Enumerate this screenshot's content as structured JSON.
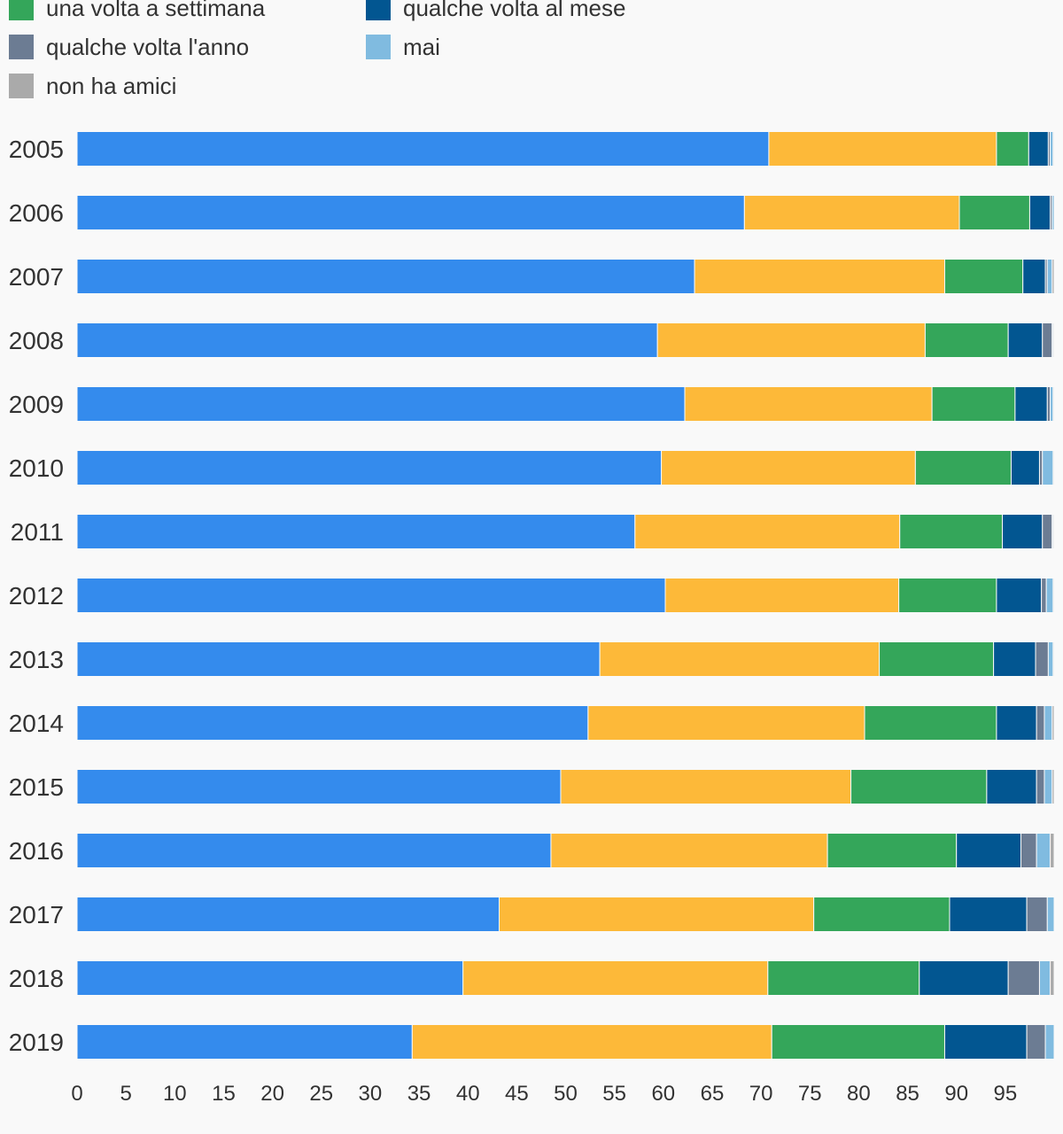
{
  "chart_data": {
    "type": "bar",
    "orientation": "horizontal",
    "stacked": true,
    "categories": [
      "2005",
      "2006",
      "2007",
      "2008",
      "2009",
      "2010",
      "2011",
      "2012",
      "2013",
      "2014",
      "2015",
      "2016",
      "2017",
      "2018",
      "2019"
    ],
    "series": [
      {
        "name": "",
        "color": "#348bed",
        "values": [
          70.8,
          68.3,
          63.2,
          59.4,
          62.2,
          59.8,
          57.1,
          60.2,
          53.5,
          52.3,
          49.5,
          48.5,
          43.2,
          39.5,
          34.3
        ]
      },
      {
        "name": "",
        "color": "#fdb939",
        "values": [
          23.3,
          22.0,
          25.6,
          27.4,
          25.3,
          26.0,
          27.1,
          23.9,
          28.6,
          28.3,
          29.7,
          28.3,
          32.2,
          31.2,
          36.8
        ]
      },
      {
        "name": "una volta a settimana",
        "color": "#34a65a",
        "values": [
          3.3,
          7.2,
          8.0,
          8.5,
          8.5,
          9.8,
          10.5,
          10.0,
          11.7,
          13.5,
          13.9,
          13.2,
          13.9,
          15.5,
          17.7
        ]
      },
      {
        "name": "qualche volta al mese",
        "color": "#025691",
        "values": [
          2.0,
          2.1,
          2.3,
          3.5,
          3.3,
          2.9,
          4.1,
          4.6,
          4.3,
          4.1,
          5.1,
          6.6,
          7.9,
          9.1,
          8.4
        ]
      },
      {
        "name": "qualche volta l'anno",
        "color": "#6c7c93",
        "values": [
          0.2,
          0.2,
          0.2,
          1.0,
          0.3,
          0.3,
          1.0,
          0.5,
          1.3,
          0.8,
          0.8,
          1.6,
          2.1,
          3.2,
          1.9
        ]
      },
      {
        "name": "mai",
        "color": "#80bbe0",
        "values": [
          0.3,
          0.2,
          0.5,
          0.1,
          0.3,
          1.1,
          0.1,
          0.7,
          0.5,
          0.8,
          0.8,
          1.4,
          0.7,
          1.1,
          0.9
        ]
      },
      {
        "name": "non ha amici",
        "color": "#aaaaaa",
        "values": [
          0.1,
          0.0,
          0.2,
          0.1,
          0.1,
          0.1,
          0.1,
          0.1,
          0.1,
          0.2,
          0.2,
          0.4,
          0.0,
          0.4,
          0.0
        ]
      }
    ],
    "xlim": [
      0,
      100
    ],
    "xticks": [
      0,
      5,
      10,
      15,
      20,
      25,
      30,
      35,
      40,
      45,
      50,
      55,
      60,
      65,
      70,
      75,
      80,
      85,
      90,
      95
    ],
    "title": "",
    "xlabel": "",
    "ylabel": "",
    "legend": "top",
    "grid": false
  }
}
